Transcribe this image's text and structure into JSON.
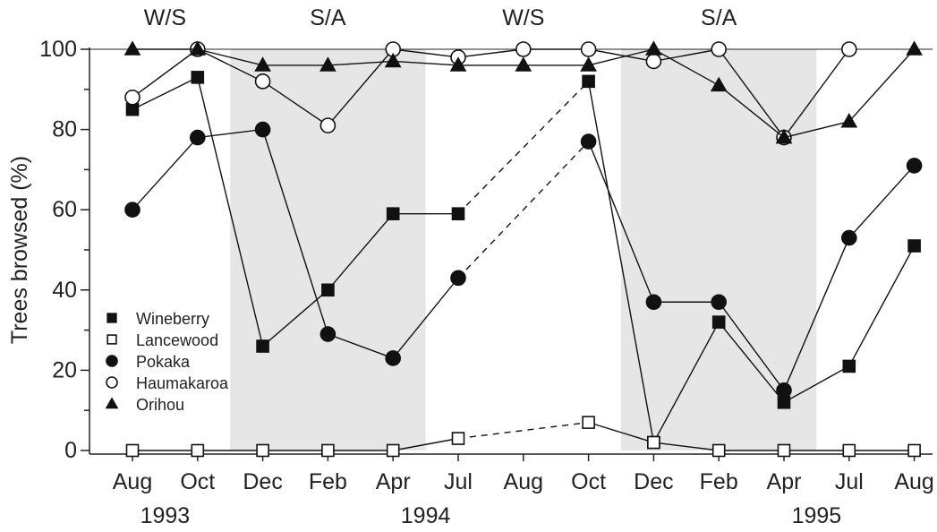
{
  "chart_data": {
    "type": "line",
    "ylabel": "Trees browsed (%)",
    "ylim": [
      0,
      100
    ],
    "yticks": [
      0,
      20,
      40,
      60,
      80,
      100
    ],
    "x": [
      "Aug",
      "Oct",
      "Dec",
      "Feb",
      "Apr",
      "Jul",
      "Aug",
      "Oct",
      "Dec",
      "Feb",
      "Apr",
      "Jul",
      "Aug"
    ],
    "years": [
      {
        "label": "1993",
        "at_index": 0.5
      },
      {
        "label": "1994",
        "at_index": 4.5
      },
      {
        "label": "1995",
        "at_index": 10.5
      }
    ],
    "seasons": [
      {
        "label": "W/S",
        "at_index": 0.5,
        "shaded": false
      },
      {
        "label": "S/A",
        "at_index": 3.0,
        "shaded": true,
        "from_index": 1.5,
        "to_index": 4.5
      },
      {
        "label": "W/S",
        "at_index": 6.0,
        "shaded": false
      },
      {
        "label": "S/A",
        "at_index": 9.0,
        "shaded": true,
        "from_index": 7.5,
        "to_index": 10.5
      }
    ],
    "shade_color": "#e6e6e6",
    "legend_position": "lower-left",
    "series": [
      {
        "name": "Wineberry",
        "marker": "square-filled",
        "values": [
          85,
          93,
          26,
          40,
          59,
          59,
          null,
          92,
          2,
          32,
          12,
          21,
          51
        ],
        "dashed_segments": [
          [
            5,
            7
          ]
        ]
      },
      {
        "name": "Lancewood",
        "marker": "square-open",
        "values": [
          0,
          0,
          0,
          0,
          0,
          3,
          null,
          7,
          2,
          0,
          0,
          0,
          0
        ],
        "dashed_segments": [
          [
            5,
            7
          ]
        ]
      },
      {
        "name": "Pokaka",
        "marker": "circle-filled",
        "values": [
          60,
          78,
          80,
          29,
          23,
          43,
          null,
          77,
          37,
          37,
          15,
          53,
          71
        ],
        "dashed_segments": [
          [
            5,
            7
          ]
        ]
      },
      {
        "name": "Haumakaroa",
        "marker": "circle-open",
        "values": [
          88,
          100,
          92,
          81,
          100,
          98,
          100,
          100,
          97,
          100,
          78,
          100,
          null
        ],
        "dashed_segments": []
      },
      {
        "name": "Orihou",
        "marker": "triangle-filled",
        "values": [
          100,
          100,
          96,
          96,
          97,
          96,
          96,
          96,
          100,
          91,
          78,
          82,
          100
        ],
        "dashed_segments": []
      }
    ]
  }
}
